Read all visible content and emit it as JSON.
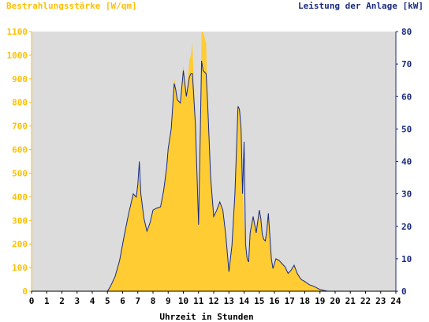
{
  "chart_data": {
    "type": "area",
    "title_left": "Bestrahlungsstärke [W/qm]",
    "title_right": "Leistung der Anlage [kW]",
    "xlabel": "Uhrzeit in Stunden",
    "x_ticks": [
      "0",
      "1",
      "2",
      "3",
      "4",
      "5",
      "6",
      "7",
      "8",
      "9",
      "10",
      "11",
      "12",
      "13",
      "14",
      "15",
      "16",
      "17",
      "18",
      "19",
      "20",
      "21",
      "22",
      "23",
      "24"
    ],
    "y_left_ticks": [
      "0",
      "100",
      "200",
      "300",
      "400",
      "500",
      "600",
      "700",
      "800",
      "900",
      "1000",
      "1100"
    ],
    "y_right_ticks": [
      "0",
      "10",
      "20",
      "30",
      "40",
      "50",
      "60",
      "70",
      "80"
    ],
    "ylim_left": [
      0,
      1100
    ],
    "ylim_right": [
      0,
      80
    ],
    "xlim": [
      0,
      24
    ],
    "grid": false,
    "colors": {
      "background": "#dcdcdc",
      "irradiance_fill": "#ffcc33",
      "power_line": "#1a2a80",
      "left_axis_text": "#ffbf00",
      "right_axis_text": "#1a2a80",
      "bottom_text": "#000000"
    },
    "series": [
      {
        "name": "Bestrahlungsstärke [W/qm]",
        "axis": "left",
        "style": "area",
        "x": [
          0,
          5,
          5.2,
          5.5,
          5.8,
          6.1,
          6.4,
          6.7,
          6.9,
          7.0,
          7.1,
          7.2,
          7.4,
          7.6,
          7.8,
          8.0,
          8.2,
          8.5,
          8.7,
          8.9,
          9.0,
          9.2,
          9.4,
          9.5,
          9.6,
          9.8,
          10.0,
          10.2,
          10.4,
          10.5,
          10.6,
          10.8,
          11.0,
          11.1,
          11.2,
          11.3,
          11.5,
          11.6,
          11.8,
          12.0,
          12.2,
          12.4,
          12.6,
          12.8,
          13.0,
          13.2,
          13.4,
          13.6,
          13.7,
          13.8,
          13.9,
          14.0,
          14.1,
          14.2,
          14.3,
          14.4,
          14.6,
          14.8,
          15.0,
          15.1,
          15.2,
          15.3,
          15.4,
          15.5,
          15.6,
          15.8,
          15.9,
          16.0,
          16.1,
          16.3,
          16.5,
          16.7,
          16.9,
          17.1,
          17.3,
          17.5,
          17.7,
          17.8,
          18.0,
          18.3,
          18.6,
          19.0,
          19.5,
          19.8,
          20.0,
          20.2,
          24
        ],
        "y": [
          0,
          0,
          20,
          60,
          130,
          230,
          330,
          410,
          400,
          440,
          480,
          410,
          310,
          255,
          290,
          340,
          350,
          360,
          420,
          520,
          600,
          680,
          900,
          870,
          810,
          800,
          960,
          830,
          980,
          1000,
          1050,
          700,
          280,
          600,
          1100,
          1100,
          1050,
          800,
          480,
          320,
          340,
          380,
          340,
          230,
          80,
          190,
          420,
          790,
          760,
          680,
          420,
          300,
          200,
          140,
          120,
          250,
          320,
          250,
          340,
          310,
          240,
          220,
          210,
          260,
          330,
          140,
          100,
          120,
          140,
          130,
          120,
          100,
          80,
          90,
          110,
          80,
          60,
          50,
          40,
          30,
          20,
          5,
          0,
          0,
          0,
          0,
          0
        ]
      },
      {
        "name": "Leistung der Anlage [kW]",
        "axis": "right",
        "style": "line",
        "x": [
          0,
          5,
          5.2,
          5.5,
          5.8,
          6.1,
          6.4,
          6.7,
          6.9,
          7.0,
          7.1,
          7.2,
          7.4,
          7.6,
          7.8,
          8.0,
          8.2,
          8.5,
          8.7,
          8.9,
          9.0,
          9.2,
          9.4,
          9.5,
          9.6,
          9.8,
          10.0,
          10.2,
          10.4,
          10.5,
          10.6,
          10.8,
          11.0,
          11.1,
          11.2,
          11.3,
          11.5,
          11.6,
          11.8,
          12.0,
          12.2,
          12.4,
          12.6,
          12.8,
          13.0,
          13.2,
          13.4,
          13.6,
          13.7,
          13.8,
          13.9,
          14.0,
          14.1,
          14.2,
          14.3,
          14.4,
          14.6,
          14.8,
          15.0,
          15.1,
          15.2,
          15.3,
          15.4,
          15.5,
          15.6,
          15.8,
          15.9,
          16.0,
          16.1,
          16.3,
          16.5,
          16.7,
          16.9,
          17.1,
          17.3,
          17.5,
          17.7,
          17.8,
          18.0,
          18.3,
          18.6,
          19.0,
          19.5,
          19.8,
          20.0,
          20.2,
          24
        ],
        "y": [
          0,
          0,
          1.5,
          4.5,
          9.5,
          17,
          24,
          30,
          29,
          33,
          40,
          30,
          22.5,
          18.5,
          21,
          25,
          25.5,
          26,
          31,
          38,
          44,
          50,
          64,
          62,
          59,
          58,
          68,
          60,
          66,
          67,
          67,
          51,
          20.5,
          45,
          71,
          68,
          67,
          58,
          35,
          23,
          25,
          27.5,
          25,
          17,
          6,
          14,
          30,
          57,
          56,
          50,
          30,
          46,
          14.5,
          10,
          9,
          18,
          23,
          18,
          25,
          22.5,
          17.5,
          16,
          15.5,
          19,
          24,
          10,
          7,
          8.5,
          10,
          9.5,
          8.5,
          7.5,
          5.5,
          6.5,
          8,
          5.5,
          4,
          3.5,
          3,
          2,
          1.5,
          0.5,
          0,
          0,
          0,
          0,
          0
        ]
      }
    ]
  }
}
